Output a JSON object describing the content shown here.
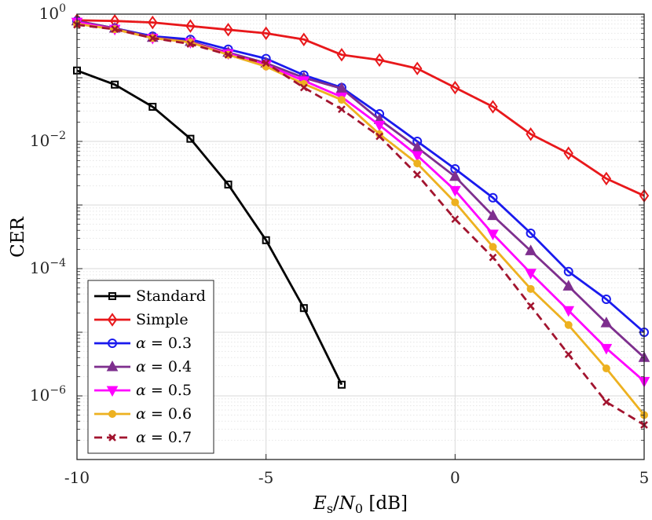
{
  "chart_data": {
    "type": "line",
    "x_scale": "linear",
    "y_scale": "log",
    "xlim": [
      -10,
      5
    ],
    "ylim": [
      1e-07,
      1
    ],
    "grid": true,
    "legend_position": "bottom-left",
    "xlabel_text": "Es/N0 [dB]",
    "ylabel": "CER",
    "xticks": [
      {
        "value": -10,
        "label": "-10"
      },
      {
        "value": -5,
        "label": "-5"
      },
      {
        "value": 0,
        "label": "0"
      },
      {
        "value": 5,
        "label": "5"
      }
    ],
    "yticks": [
      {
        "exp": 0,
        "base": "10",
        "sup": "0"
      },
      {
        "exp": -2,
        "base": "10",
        "sup": "−2"
      },
      {
        "exp": -4,
        "base": "10",
        "sup": "−4"
      },
      {
        "exp": -6,
        "base": "10",
        "sup": "−6"
      }
    ],
    "series": [
      {
        "name": "Standard",
        "color": "#000000",
        "marker": "square",
        "dash": "solid",
        "x": [
          -10,
          -9,
          -8,
          -7,
          -6,
          -5,
          -4,
          -3
        ],
        "y": [
          0.13,
          0.078,
          0.035,
          0.011,
          0.0021,
          0.00028,
          2.4e-05,
          1.5e-06
        ]
      },
      {
        "name": "Simple",
        "color": "#e8181b",
        "marker": "diamond",
        "dash": "solid",
        "x": [
          -10,
          -9,
          -8,
          -7,
          -6,
          -5,
          -4,
          -3,
          -2,
          -1,
          0,
          1,
          2,
          3,
          4,
          5
        ],
        "y": [
          0.8,
          0.78,
          0.74,
          0.65,
          0.57,
          0.5,
          0.4,
          0.23,
          0.19,
          0.14,
          0.07,
          0.035,
          0.013,
          0.0065,
          0.0026,
          0.0014
        ]
      },
      {
        "name": "α = 0.3",
        "greek": "α",
        "rest": " = 0.3",
        "color": "#1a1aee",
        "marker": "circle",
        "dash": "solid",
        "x": [
          -10,
          -9,
          -8,
          -7,
          -6,
          -5,
          -4,
          -3,
          -2,
          -1,
          0,
          1,
          2,
          3,
          4,
          5
        ],
        "y": [
          0.78,
          0.6,
          0.45,
          0.4,
          0.28,
          0.2,
          0.11,
          0.07,
          0.027,
          0.01,
          0.0037,
          0.0013,
          0.00036,
          9e-05,
          3.3e-05,
          1e-05
        ]
      },
      {
        "name": "α = 0.4",
        "greek": "α",
        "rest": " = 0.4",
        "color": "#7e2f8e",
        "marker": "triangle-up",
        "dash": "solid",
        "x": [
          -10,
          -9,
          -8,
          -7,
          -6,
          -5,
          -4,
          -3,
          -2,
          -1,
          0,
          1,
          2,
          3,
          4,
          5
        ],
        "y": [
          0.78,
          0.6,
          0.43,
          0.37,
          0.25,
          0.17,
          0.1,
          0.068,
          0.022,
          0.008,
          0.0028,
          0.00068,
          0.00019,
          5.3e-05,
          1.4e-05,
          4e-06
        ]
      },
      {
        "name": "α = 0.5",
        "greek": "α",
        "rest": " = 0.5",
        "color": "#ff00ff",
        "marker": "triangle-down",
        "dash": "solid",
        "x": [
          -10,
          -9,
          -8,
          -7,
          -6,
          -5,
          -4,
          -3,
          -2,
          -1,
          0,
          1,
          2,
          3,
          4,
          5
        ],
        "y": [
          0.75,
          0.58,
          0.42,
          0.36,
          0.24,
          0.16,
          0.09,
          0.05,
          0.018,
          0.006,
          0.0017,
          0.00035,
          8.5e-05,
          2.2e-05,
          5.6e-06,
          1.7e-06
        ]
      },
      {
        "name": "α = 0.6",
        "greek": "α",
        "rest": " = 0.6",
        "color": "#edb120",
        "marker": "dot",
        "dash": "solid",
        "x": [
          -10,
          -9,
          -8,
          -7,
          -6,
          -5,
          -4,
          -3,
          -2,
          -1,
          0,
          1,
          2,
          3,
          4,
          5
        ],
        "y": [
          0.7,
          0.58,
          0.42,
          0.36,
          0.23,
          0.15,
          0.08,
          0.045,
          0.013,
          0.0045,
          0.0011,
          0.00022,
          4.8e-05,
          1.3e-05,
          2.7e-06,
          5e-07
        ]
      },
      {
        "name": "α = 0.7",
        "greek": "α",
        "rest": " = 0.7",
        "color": "#a2142f",
        "marker": "x",
        "dash": "dashed",
        "x": [
          -10,
          -9,
          -8,
          -7,
          -6,
          -5,
          -4,
          -3,
          -2,
          -1,
          0,
          1,
          2,
          3,
          4,
          5
        ],
        "y": [
          0.68,
          0.58,
          0.42,
          0.34,
          0.23,
          0.17,
          0.07,
          0.032,
          0.012,
          0.003,
          0.0006,
          0.00015,
          2.6e-05,
          4.5e-06,
          8e-07,
          3.5e-07
        ]
      }
    ]
  }
}
